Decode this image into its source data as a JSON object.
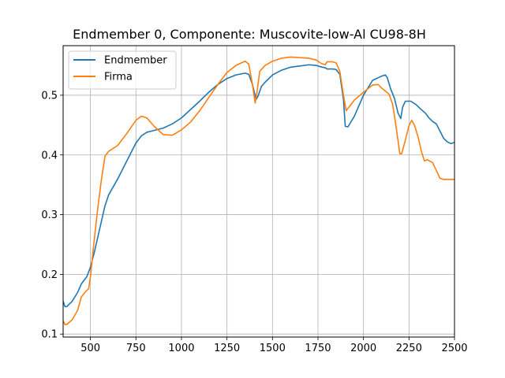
{
  "chart_data": {
    "type": "line",
    "title": "Endmember 0, Componente: Muscovite-low-Al CU98-8H",
    "xlabel": "",
    "ylabel": "",
    "xlim": [
      350,
      2500
    ],
    "ylim": [
      0.095,
      0.583
    ],
    "xticks": [
      500,
      750,
      1000,
      1250,
      1500,
      1750,
      2000,
      2250,
      2500
    ],
    "yticks": [
      0.1,
      0.2,
      0.3,
      0.4,
      0.5
    ],
    "grid": true,
    "legend": "upper-left",
    "series": [
      {
        "name": "Endmember",
        "color": "#1f77b4",
        "points": [
          [
            350,
            0.155
          ],
          [
            360,
            0.146
          ],
          [
            370,
            0.146
          ],
          [
            400,
            0.155
          ],
          [
            430,
            0.17
          ],
          [
            450,
            0.184
          ],
          [
            480,
            0.196
          ],
          [
            500,
            0.212
          ],
          [
            520,
            0.235
          ],
          [
            550,
            0.275
          ],
          [
            580,
            0.315
          ],
          [
            600,
            0.333
          ],
          [
            650,
            0.36
          ],
          [
            700,
            0.39
          ],
          [
            750,
            0.42
          ],
          [
            780,
            0.432
          ],
          [
            810,
            0.438
          ],
          [
            850,
            0.441
          ],
          [
            900,
            0.445
          ],
          [
            950,
            0.452
          ],
          [
            1000,
            0.462
          ],
          [
            1050,
            0.476
          ],
          [
            1100,
            0.49
          ],
          [
            1150,
            0.505
          ],
          [
            1200,
            0.518
          ],
          [
            1250,
            0.528
          ],
          [
            1300,
            0.534
          ],
          [
            1350,
            0.537
          ],
          [
            1370,
            0.535
          ],
          [
            1390,
            0.518
          ],
          [
            1410,
            0.493
          ],
          [
            1420,
            0.498
          ],
          [
            1440,
            0.515
          ],
          [
            1460,
            0.522
          ],
          [
            1500,
            0.534
          ],
          [
            1550,
            0.542
          ],
          [
            1600,
            0.547
          ],
          [
            1650,
            0.549
          ],
          [
            1700,
            0.551
          ],
          [
            1740,
            0.55
          ],
          [
            1760,
            0.548
          ],
          [
            1790,
            0.546
          ],
          [
            1800,
            0.544
          ],
          [
            1830,
            0.544
          ],
          [
            1850,
            0.543
          ],
          [
            1870,
            0.535
          ],
          [
            1890,
            0.493
          ],
          [
            1900,
            0.448
          ],
          [
            1915,
            0.447
          ],
          [
            1950,
            0.465
          ],
          [
            2000,
            0.5
          ],
          [
            2050,
            0.525
          ],
          [
            2100,
            0.532
          ],
          [
            2120,
            0.534
          ],
          [
            2130,
            0.53
          ],
          [
            2150,
            0.51
          ],
          [
            2170,
            0.495
          ],
          [
            2190,
            0.47
          ],
          [
            2205,
            0.461
          ],
          [
            2215,
            0.48
          ],
          [
            2230,
            0.49
          ],
          [
            2260,
            0.49
          ],
          [
            2290,
            0.484
          ],
          [
            2310,
            0.478
          ],
          [
            2340,
            0.47
          ],
          [
            2360,
            0.462
          ],
          [
            2380,
            0.456
          ],
          [
            2400,
            0.452
          ],
          [
            2420,
            0.44
          ],
          [
            2440,
            0.428
          ],
          [
            2460,
            0.422
          ],
          [
            2480,
            0.419
          ],
          [
            2500,
            0.421
          ]
        ]
      },
      {
        "name": "Firma",
        "color": "#ff7f0e",
        "points": [
          [
            350,
            0.122
          ],
          [
            360,
            0.116
          ],
          [
            370,
            0.116
          ],
          [
            400,
            0.124
          ],
          [
            430,
            0.14
          ],
          [
            450,
            0.162
          ],
          [
            470,
            0.17
          ],
          [
            490,
            0.176
          ],
          [
            500,
            0.196
          ],
          [
            520,
            0.255
          ],
          [
            540,
            0.31
          ],
          [
            560,
            0.358
          ],
          [
            580,
            0.398
          ],
          [
            600,
            0.406
          ],
          [
            650,
            0.416
          ],
          [
            700,
            0.436
          ],
          [
            750,
            0.458
          ],
          [
            780,
            0.465
          ],
          [
            810,
            0.462
          ],
          [
            850,
            0.448
          ],
          [
            900,
            0.434
          ],
          [
            950,
            0.433
          ],
          [
            1000,
            0.442
          ],
          [
            1050,
            0.455
          ],
          [
            1100,
            0.474
          ],
          [
            1150,
            0.496
          ],
          [
            1200,
            0.518
          ],
          [
            1250,
            0.538
          ],
          [
            1300,
            0.55
          ],
          [
            1350,
            0.557
          ],
          [
            1370,
            0.552
          ],
          [
            1390,
            0.518
          ],
          [
            1405,
            0.487
          ],
          [
            1415,
            0.505
          ],
          [
            1430,
            0.54
          ],
          [
            1460,
            0.55
          ],
          [
            1500,
            0.557
          ],
          [
            1550,
            0.562
          ],
          [
            1600,
            0.564
          ],
          [
            1650,
            0.563
          ],
          [
            1700,
            0.562
          ],
          [
            1740,
            0.559
          ],
          [
            1770,
            0.553
          ],
          [
            1790,
            0.551
          ],
          [
            1800,
            0.556
          ],
          [
            1830,
            0.556
          ],
          [
            1850,
            0.554
          ],
          [
            1870,
            0.54
          ],
          [
            1890,
            0.5
          ],
          [
            1905,
            0.474
          ],
          [
            1920,
            0.48
          ],
          [
            1950,
            0.492
          ],
          [
            2000,
            0.505
          ],
          [
            2050,
            0.517
          ],
          [
            2080,
            0.518
          ],
          [
            2100,
            0.512
          ],
          [
            2120,
            0.507
          ],
          [
            2140,
            0.502
          ],
          [
            2160,
            0.485
          ],
          [
            2180,
            0.445
          ],
          [
            2200,
            0.402
          ],
          [
            2210,
            0.402
          ],
          [
            2230,
            0.425
          ],
          [
            2250,
            0.449
          ],
          [
            2265,
            0.458
          ],
          [
            2280,
            0.45
          ],
          [
            2300,
            0.43
          ],
          [
            2320,
            0.404
          ],
          [
            2335,
            0.39
          ],
          [
            2350,
            0.392
          ],
          [
            2380,
            0.387
          ],
          [
            2400,
            0.374
          ],
          [
            2420,
            0.361
          ],
          [
            2440,
            0.359
          ],
          [
            2460,
            0.359
          ],
          [
            2500,
            0.359
          ]
        ]
      }
    ]
  }
}
